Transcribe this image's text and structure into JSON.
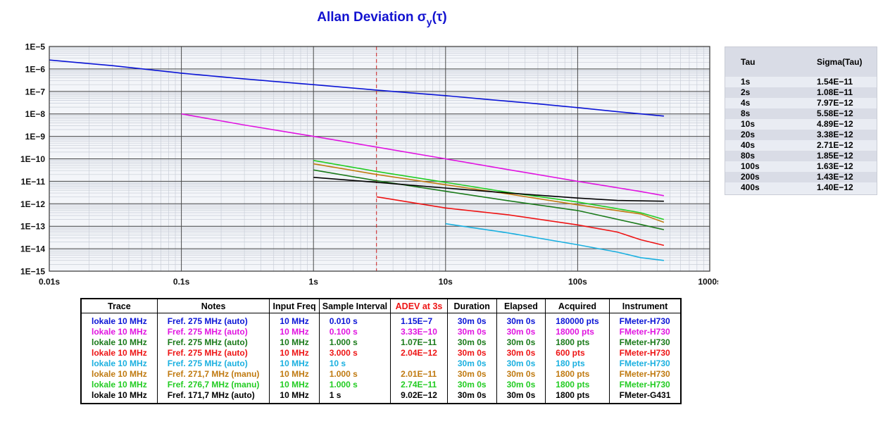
{
  "chart_data": {
    "type": "line",
    "title": "Allan Deviation",
    "title_symbol": "σ",
    "title_sub": "y",
    "title_arg": "(τ)",
    "x_scale": "log",
    "y_scale": "log",
    "xlim": [
      0.01,
      1000
    ],
    "ylim": [
      1e-15,
      1e-05
    ],
    "x_ticks": [
      "0.01s",
      "0.1s",
      "1s",
      "10s",
      "100s",
      "1000s"
    ],
    "y_ticks": [
      "1E−5",
      "1E−6",
      "1E−7",
      "1E−8",
      "1E−9",
      "1E−10",
      "1E−11",
      "1E−12",
      "1E−13",
      "1E−14",
      "1E−15"
    ],
    "grid": true,
    "marker_line_x": 3,
    "marker_color": "#d02020",
    "series": [
      {
        "color": "#0a14d6",
        "x": [
          0.01,
          0.03,
          0.1,
          0.3,
          1,
          3,
          10,
          20,
          50,
          100,
          200,
          450
        ],
        "y": [
          2.5e-06,
          1.4e-06,
          6.5e-07,
          3.6e-07,
          2e-07,
          1.15e-07,
          6.5e-08,
          4.5e-08,
          2.8e-08,
          1.9e-08,
          1.25e-08,
          8e-09
        ]
      },
      {
        "color": "#e014e0",
        "x": [
          0.1,
          0.3,
          1,
          3,
          10,
          30,
          100,
          300,
          450
        ],
        "y": [
          1e-08,
          3.2e-09,
          1e-09,
          3.33e-10,
          1e-10,
          3.3e-11,
          1e-11,
          3.5e-12,
          2.3e-12
        ]
      },
      {
        "color": "#1a7a1a",
        "x": [
          1,
          3,
          10,
          30,
          100,
          300,
          450
        ],
        "y": [
          3.2e-11,
          1.07e-11,
          3.6e-12,
          1.35e-12,
          5e-13,
          1.2e-13,
          7e-14
        ]
      },
      {
        "color": "#ee1414",
        "x": [
          3,
          10,
          30,
          100,
          200,
          300,
          450
        ],
        "y": [
          2.04e-12,
          6.5e-13,
          3.2e-13,
          1.15e-13,
          5.5e-14,
          2.5e-14,
          1.4e-14
        ]
      },
      {
        "color": "#1ab0e0",
        "x": [
          10,
          30,
          100,
          200,
          300,
          450
        ],
        "y": [
          1.3e-13,
          5e-14,
          1.5e-14,
          7e-15,
          4e-15,
          3e-15
        ]
      },
      {
        "color": "#c07a10",
        "x": [
          1,
          3,
          10,
          30,
          100,
          300,
          450
        ],
        "y": [
          6e-11,
          2.01e-11,
          7e-12,
          2.7e-12,
          9e-13,
          3.5e-13,
          1.5e-13
        ]
      },
      {
        "color": "#22cc22",
        "x": [
          1,
          3,
          10,
          30,
          100,
          300,
          450
        ],
        "y": [
          8.5e-11,
          2.74e-11,
          9e-12,
          3.2e-12,
          1.2e-12,
          4e-13,
          2e-13
        ]
      },
      {
        "color": "#000000",
        "x": [
          1,
          3,
          10,
          30,
          100,
          200,
          450
        ],
        "y": [
          1.5e-11,
          9.02e-12,
          5e-12,
          3e-12,
          1.8e-12,
          1.4e-12,
          1.3e-12
        ]
      }
    ]
  },
  "tau_table": {
    "headers": [
      "Tau",
      "Sigma(Tau)"
    ],
    "rows": [
      [
        "1s",
        "1.54E−11"
      ],
      [
        "2s",
        "1.08E−11"
      ],
      [
        "4s",
        "7.97E−12"
      ],
      [
        "8s",
        "5.58E−12"
      ],
      [
        "10s",
        "4.89E−12"
      ],
      [
        "20s",
        "3.38E−12"
      ],
      [
        "40s",
        "2.71E−12"
      ],
      [
        "80s",
        "1.85E−12"
      ],
      [
        "100s",
        "1.63E−12"
      ],
      [
        "200s",
        "1.43E−12"
      ],
      [
        "400s",
        "1.40E−12"
      ]
    ]
  },
  "trace_table": {
    "headers": [
      "Trace",
      "Notes",
      "Input Freq",
      "Sample Interval",
      "ADEV at 3s",
      "Duration",
      "Elapsed",
      "Acquired",
      "Instrument"
    ],
    "header_colors": [
      "#000000",
      "#000000",
      "#000000",
      "#000000",
      "#ee1414",
      "#000000",
      "#000000",
      "#000000",
      "#000000"
    ],
    "rows": [
      {
        "color": "#0a14d6",
        "cells": [
          "lokale 10 MHz",
          "Fref. 275 MHz (auto)",
          "10 MHz",
          "0.010 s",
          "1.15E−7",
          "30m 0s",
          "30m 0s",
          "180000 pts",
          "FMeter-H730"
        ]
      },
      {
        "color": "#e014e0",
        "cells": [
          "lokale 10 MHz",
          "Fref. 275 MHz (auto)",
          "10 MHz",
          "0.100 s",
          "3.33E−10",
          "30m 0s",
          "30m 0s",
          "18000 pts",
          "FMeter-H730"
        ]
      },
      {
        "color": "#1a7a1a",
        "cells": [
          "lokale 10 MHz",
          "Fref. 275 MHz (auto)",
          "10 MHz",
          "1.000 s",
          "1.07E−11",
          "30m 0s",
          "30m 0s",
          "1800 pts",
          "FMeter-H730"
        ]
      },
      {
        "color": "#ee1414",
        "cells": [
          "lokale 10 MHz",
          "Fref. 275 MHz (auto)",
          "10 MHz",
          "3.000 s",
          "2.04E−12",
          "30m 0s",
          "30m 0s",
          "600 pts",
          "FMeter-H730"
        ]
      },
      {
        "color": "#1ab0e0",
        "cells": [
          "lokale 10 MHz",
          "Fref. 275 MHz (auto)",
          "10 MHz",
          "10 s",
          "",
          "30m 0s",
          "30m 0s",
          "180 pts",
          "FMeter-H730"
        ]
      },
      {
        "color": "#c07a10",
        "cells": [
          "lokale 10 MHz",
          "Fref. 271,7 MHz (manu)",
          "10 MHz",
          "1.000 s",
          "2.01E−11",
          "30m 0s",
          "30m 0s",
          "1800 pts",
          "FMeter-H730"
        ]
      },
      {
        "color": "#22cc22",
        "cells": [
          "lokale 10 MHz",
          "Fref. 276,7 MHz (manu)",
          "10 MHz",
          "1.000 s",
          "2.74E−11",
          "30m 0s",
          "30m 0s",
          "1800 pts",
          "FMeter-H730"
        ]
      },
      {
        "color": "#000000",
        "cells": [
          "lokale 10 MHz",
          "Fref. 171,7 MHz (auto)",
          "10 MHz",
          "1 s",
          "9.02E−12",
          "30m 0s",
          "30m 0s",
          "1800 pts",
          "FMeter-G431"
        ]
      }
    ]
  }
}
